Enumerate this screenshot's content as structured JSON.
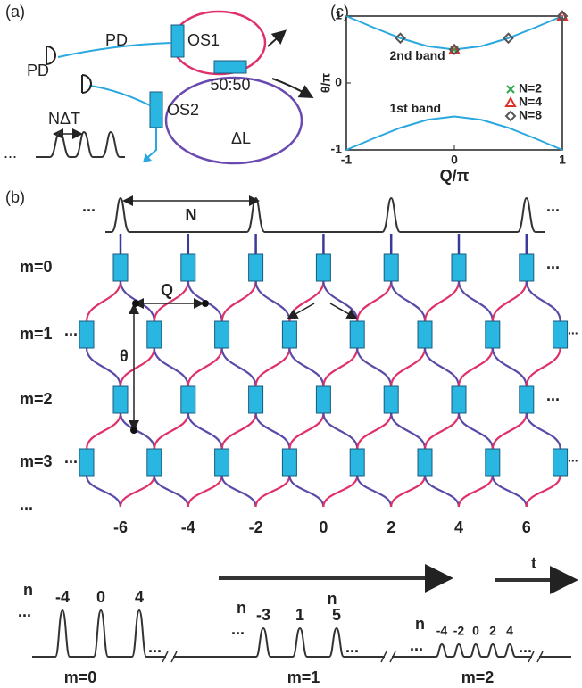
{
  "panel_a": {
    "label": "(a)",
    "pd_top": "PD",
    "pd_bottom": "PD",
    "os1": "OS1",
    "os2": "OS2",
    "coupler": "50:50",
    "delay": "ΔL",
    "spacing": "NΔT",
    "ellipsis": "..."
  },
  "panel_b": {
    "label": "(b)",
    "period": "N",
    "q_label": "Q",
    "theta_label": "θ",
    "rows": [
      "m=0",
      "m=1",
      "m=2",
      "m=3",
      "..."
    ],
    "columns": [
      "-6",
      "-4",
      "-2",
      "0",
      "2",
      "4",
      "6"
    ],
    "axis_label": "n",
    "ellipsis": "...",
    "time": "t",
    "traces": [
      {
        "label": "m=0",
        "n_label": "n",
        "pulses": [
          "-4",
          "0",
          "4"
        ]
      },
      {
        "label": "m=1",
        "n_label": "n",
        "pulses": [
          "-3",
          "1",
          "5"
        ]
      },
      {
        "label": "m=2",
        "n_label": "n",
        "pulses": [
          "-4",
          "-2",
          "0",
          "2",
          "4"
        ]
      }
    ]
  },
  "chart_data": {
    "type": "line",
    "label": "(c)",
    "xlabel": "Q/π",
    "ylabel": "θ/π",
    "xlim": [
      -1,
      1
    ],
    "ylim": [
      -1,
      1
    ],
    "xticks": [
      -1,
      0,
      1
    ],
    "yticks": [
      -1,
      0,
      1
    ],
    "legend": "right",
    "series": [
      {
        "name": "2nd band",
        "kind": "curve",
        "color": "#29a8e0",
        "x": [
          -1,
          -0.75,
          -0.5,
          -0.25,
          0,
          0.25,
          0.5,
          0.75,
          1
        ],
        "values": [
          1,
          0.83,
          0.67,
          0.55,
          0.5,
          0.55,
          0.67,
          0.83,
          1
        ]
      },
      {
        "name": "1st band",
        "kind": "curve",
        "color": "#29a8e0",
        "x": [
          -1,
          -0.75,
          -0.5,
          -0.25,
          0,
          0.25,
          0.5,
          0.75,
          1
        ],
        "values": [
          -1,
          -0.83,
          -0.67,
          -0.55,
          -0.5,
          -0.55,
          -0.67,
          -0.83,
          -1
        ]
      },
      {
        "name": "N=2",
        "kind": "marker",
        "marker": "x",
        "color": "#2aa84a",
        "x": [
          0
        ],
        "values": [
          0.5
        ]
      },
      {
        "name": "N=4",
        "kind": "marker",
        "marker": "triangle",
        "color": "#e0302a",
        "x": [
          0,
          1
        ],
        "values": [
          0.5,
          1
        ]
      },
      {
        "name": "N=8",
        "kind": "marker",
        "marker": "diamond",
        "color": "#555555",
        "x": [
          -0.5,
          0,
          0.5,
          1
        ],
        "values": [
          0.67,
          0.5,
          0.67,
          1
        ]
      }
    ]
  }
}
